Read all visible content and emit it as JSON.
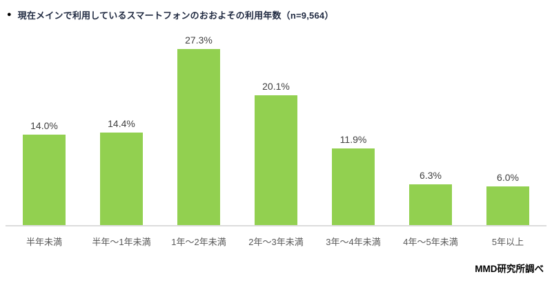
{
  "title": {
    "bullet": "●",
    "text": "現在メインで利用しているスマートフォンのおおよその利用年数（n=9,564）"
  },
  "source": "MMD研究所調べ",
  "chart_data": {
    "type": "bar",
    "title": "現在メインで利用しているスマートフォンのおおよその利用年数（n=9,564）",
    "categories": [
      "半年未満",
      "半年～1年未満",
      "1年～2年未満",
      "2年～3年未満",
      "3年～4年未満",
      "4年～5年未満",
      "5年以上"
    ],
    "values": [
      14.0,
      14.4,
      27.3,
      20.1,
      11.9,
      6.3,
      6.0
    ],
    "value_labels": [
      "14.0%",
      "14.4%",
      "27.3%",
      "20.1%",
      "11.9%",
      "6.3%",
      "6.0%"
    ],
    "xlabel": "",
    "ylabel": "",
    "ylim": [
      0,
      30
    ],
    "grid": false,
    "legend": false,
    "bar_color": "#92D050",
    "axis_line_color": "#DCDCDC"
  }
}
